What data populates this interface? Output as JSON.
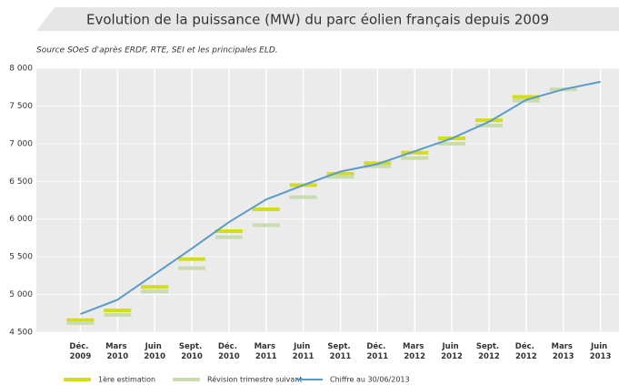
{
  "chart_data": {
    "type": "line",
    "title": "Evolution de la puissance (MW) du parc éolien français depuis 2009",
    "subtitle": "Source SOeS d'après ERDF, RTE, SEI et les principales ELD.",
    "categories": [
      "Déc. 2009",
      "Mars 2010",
      "Juin 2010",
      "Sept. 2010",
      "Déc. 2010",
      "Mars 2011",
      "Juin 2011",
      "Sept. 2011",
      "Déc. 2011",
      "Mars 2012",
      "Juin 2012",
      "Sept. 2012",
      "Déc. 2012",
      "Mars 2013",
      "Juin 2013"
    ],
    "series": [
      {
        "name": "1ère estimation",
        "color": "#d4dc1e",
        "mark": "dash",
        "values": [
          4660,
          4790,
          5100,
          5470,
          5840,
          6130,
          6450,
          6600,
          6740,
          6880,
          7070,
          7310,
          7620,
          null,
          null
        ]
      },
      {
        "name": "Révision trimestre suivant",
        "color": "#c9dcb0",
        "mark": "dash",
        "values": [
          4620,
          4730,
          5040,
          5350,
          5760,
          5920,
          6290,
          6560,
          6700,
          6810,
          7000,
          7240,
          7570,
          7720,
          null
        ]
      },
      {
        "name": "Chiffre au 30/06/2013",
        "color": "#5b9bc8",
        "mark": "line",
        "values": [
          4740,
          4930,
          5270,
          5610,
          5960,
          6260,
          6450,
          6630,
          6730,
          6900,
          7070,
          7290,
          7580,
          7720,
          7820
        ]
      }
    ],
    "ylim": [
      4500,
      8000
    ],
    "yticks": [
      {
        "value": 4500,
        "label": "4 500"
      },
      {
        "value": 5000,
        "label": "5 000"
      },
      {
        "value": 5500,
        "label": "5 500"
      },
      {
        "value": 6000,
        "label": "6 000"
      },
      {
        "value": 6500,
        "label": "6 500"
      },
      {
        "value": 7000,
        "label": "7 000"
      },
      {
        "value": 7500,
        "label": "7 500"
      },
      {
        "value": 8000,
        "label": "8 000"
      }
    ],
    "grid": true,
    "legend": "bottom"
  }
}
